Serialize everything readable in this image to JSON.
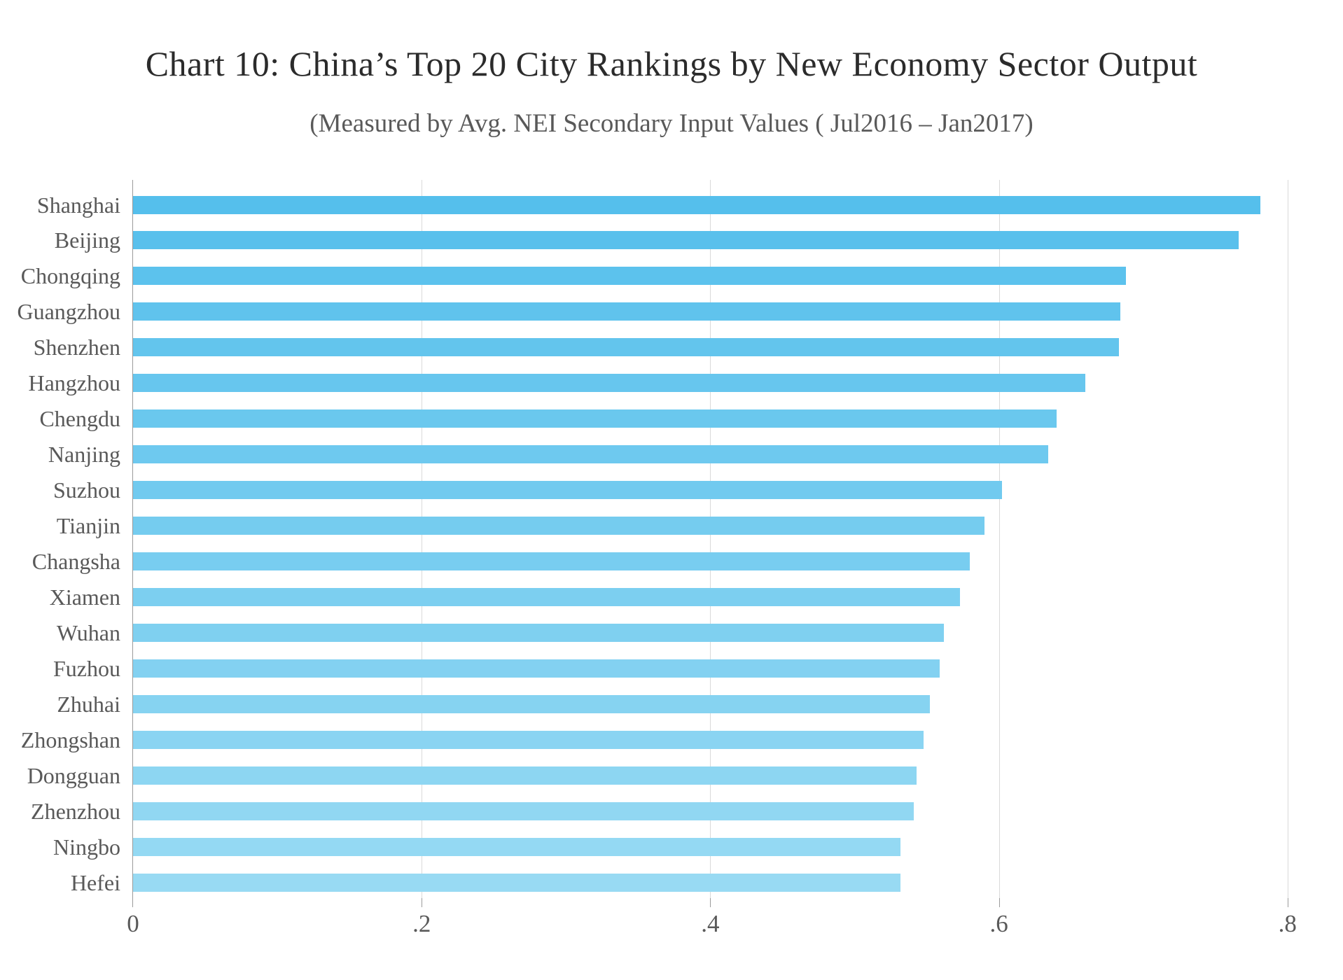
{
  "chart_data": {
    "type": "bar",
    "orientation": "horizontal",
    "title": "Chart 10: China’s Top 20 City Rankings by New Economy Sector Output",
    "subtitle": "(Measured by Avg. NEI Secondary Input Values ( Jul2016 – Jan2017)",
    "categories": [
      "Shanghai",
      "Beijing",
      "Chongqing",
      "Guangzhou",
      "Shenzhen",
      "Hangzhou",
      "Chengdu",
      "Nanjing",
      "Suzhou",
      "Tianjin",
      "Changsha",
      "Xiamen",
      "Wuhan",
      "Fuzhou",
      "Zhuhai",
      "Zhongshan",
      "Dongguan",
      "Zhenzhou",
      "Ningbo",
      "Hefei"
    ],
    "values": [
      0.781,
      0.766,
      0.688,
      0.684,
      0.683,
      0.66,
      0.64,
      0.634,
      0.602,
      0.59,
      0.58,
      0.573,
      0.562,
      0.559,
      0.552,
      0.548,
      0.543,
      0.541,
      0.532,
      0.532
    ],
    "xlabel": "",
    "ylabel": "",
    "xlim": [
      0,
      0.8
    ],
    "x_tick_labels": [
      "0",
      ".2",
      ".4",
      ".6",
      ".8"
    ],
    "x_tick_values": [
      0,
      0.2,
      0.4,
      0.6,
      0.8
    ],
    "grid": "vertical-gridlines-on",
    "legend_position": "none",
    "bar_color_start": "#55BFEC",
    "bar_color_end": "#98DAF3",
    "axis_color": "#9b9b9b",
    "gridline_color": "#d9d9d9",
    "text_color": "#595959",
    "title_color": "#2b2b2b"
  }
}
